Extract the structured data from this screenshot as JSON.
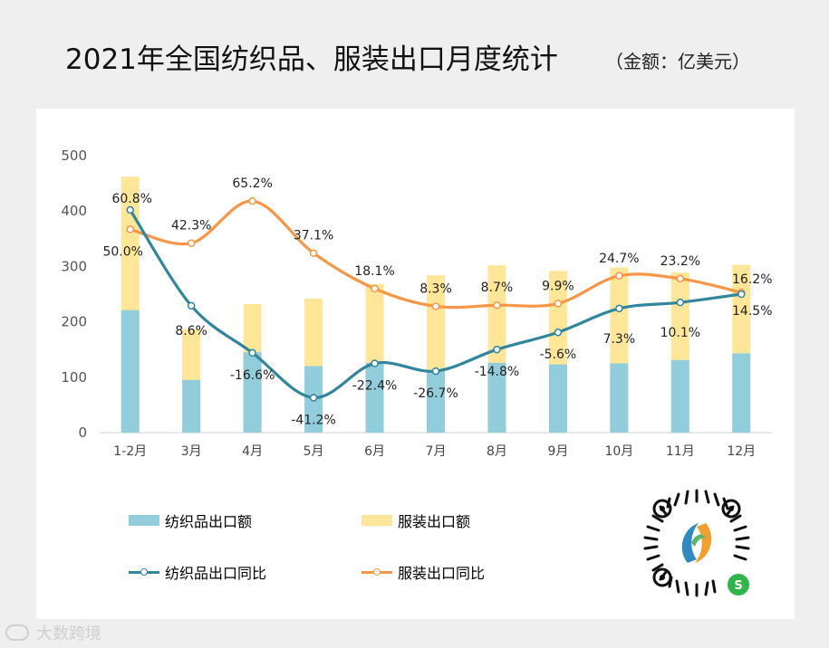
{
  "header": {
    "title": "2021年全国纺织品、服装出口月度统计",
    "subtitle": "（金额：亿美元）"
  },
  "colors": {
    "textile_bar": "#92cddc",
    "apparel_bar": "#ffe699",
    "textile_line": "#31859c",
    "apparel_line": "#f79646"
  },
  "legend": {
    "textile_export": "纺织品出口额",
    "apparel_export": "服装出口额",
    "textile_yoy": "纺织品出口同比",
    "apparel_yoy": "服装出口同比"
  },
  "watermark": {
    "text": "大数跨境"
  },
  "chart_data": {
    "type": "bar",
    "title": "2021年全国纺织品、服装出口月度统计",
    "ylim": [
      0,
      500
    ],
    "yticks": [
      0,
      100,
      200,
      300,
      400,
      500
    ],
    "categories": [
      "1-2月",
      "3月",
      "4月",
      "5月",
      "6月",
      "7月",
      "8月",
      "9月",
      "10月",
      "11月",
      "12月"
    ],
    "series": [
      {
        "name": "纺织品出口额",
        "kind": "bar",
        "values": [
          221,
          95,
          145,
          120,
          126,
          112,
          126,
          123,
          125,
          131,
          143
        ]
      },
      {
        "name": "服装出口额",
        "kind": "bar",
        "values": [
          462,
          187,
          232,
          242,
          268,
          284,
          302,
          292,
          298,
          289,
          303
        ]
      },
      {
        "name": "纺织品出口同比",
        "kind": "line",
        "y_positions": [
          402,
          229,
          144,
          63,
          125,
          111,
          150,
          181,
          224,
          235,
          250
        ],
        "labels": [
          "60.8%",
          "8.6%",
          "-16.6%",
          "-41.2%",
          "-22.4%",
          "-26.7%",
          "-14.8%",
          "-5.6%",
          "7.3%",
          "10.1%",
          "14.5%"
        ]
      },
      {
        "name": "服装出口同比",
        "kind": "line",
        "y_positions": [
          367,
          342,
          418,
          324,
          260,
          228,
          230,
          233,
          283,
          278,
          253
        ],
        "labels": [
          "50.0%",
          "42.3%",
          "65.2%",
          "37.1%",
          "18.1%",
          "8.3%",
          "8.7%",
          "9.9%",
          "24.7%",
          "23.2%",
          "16.2%"
        ]
      }
    ]
  }
}
